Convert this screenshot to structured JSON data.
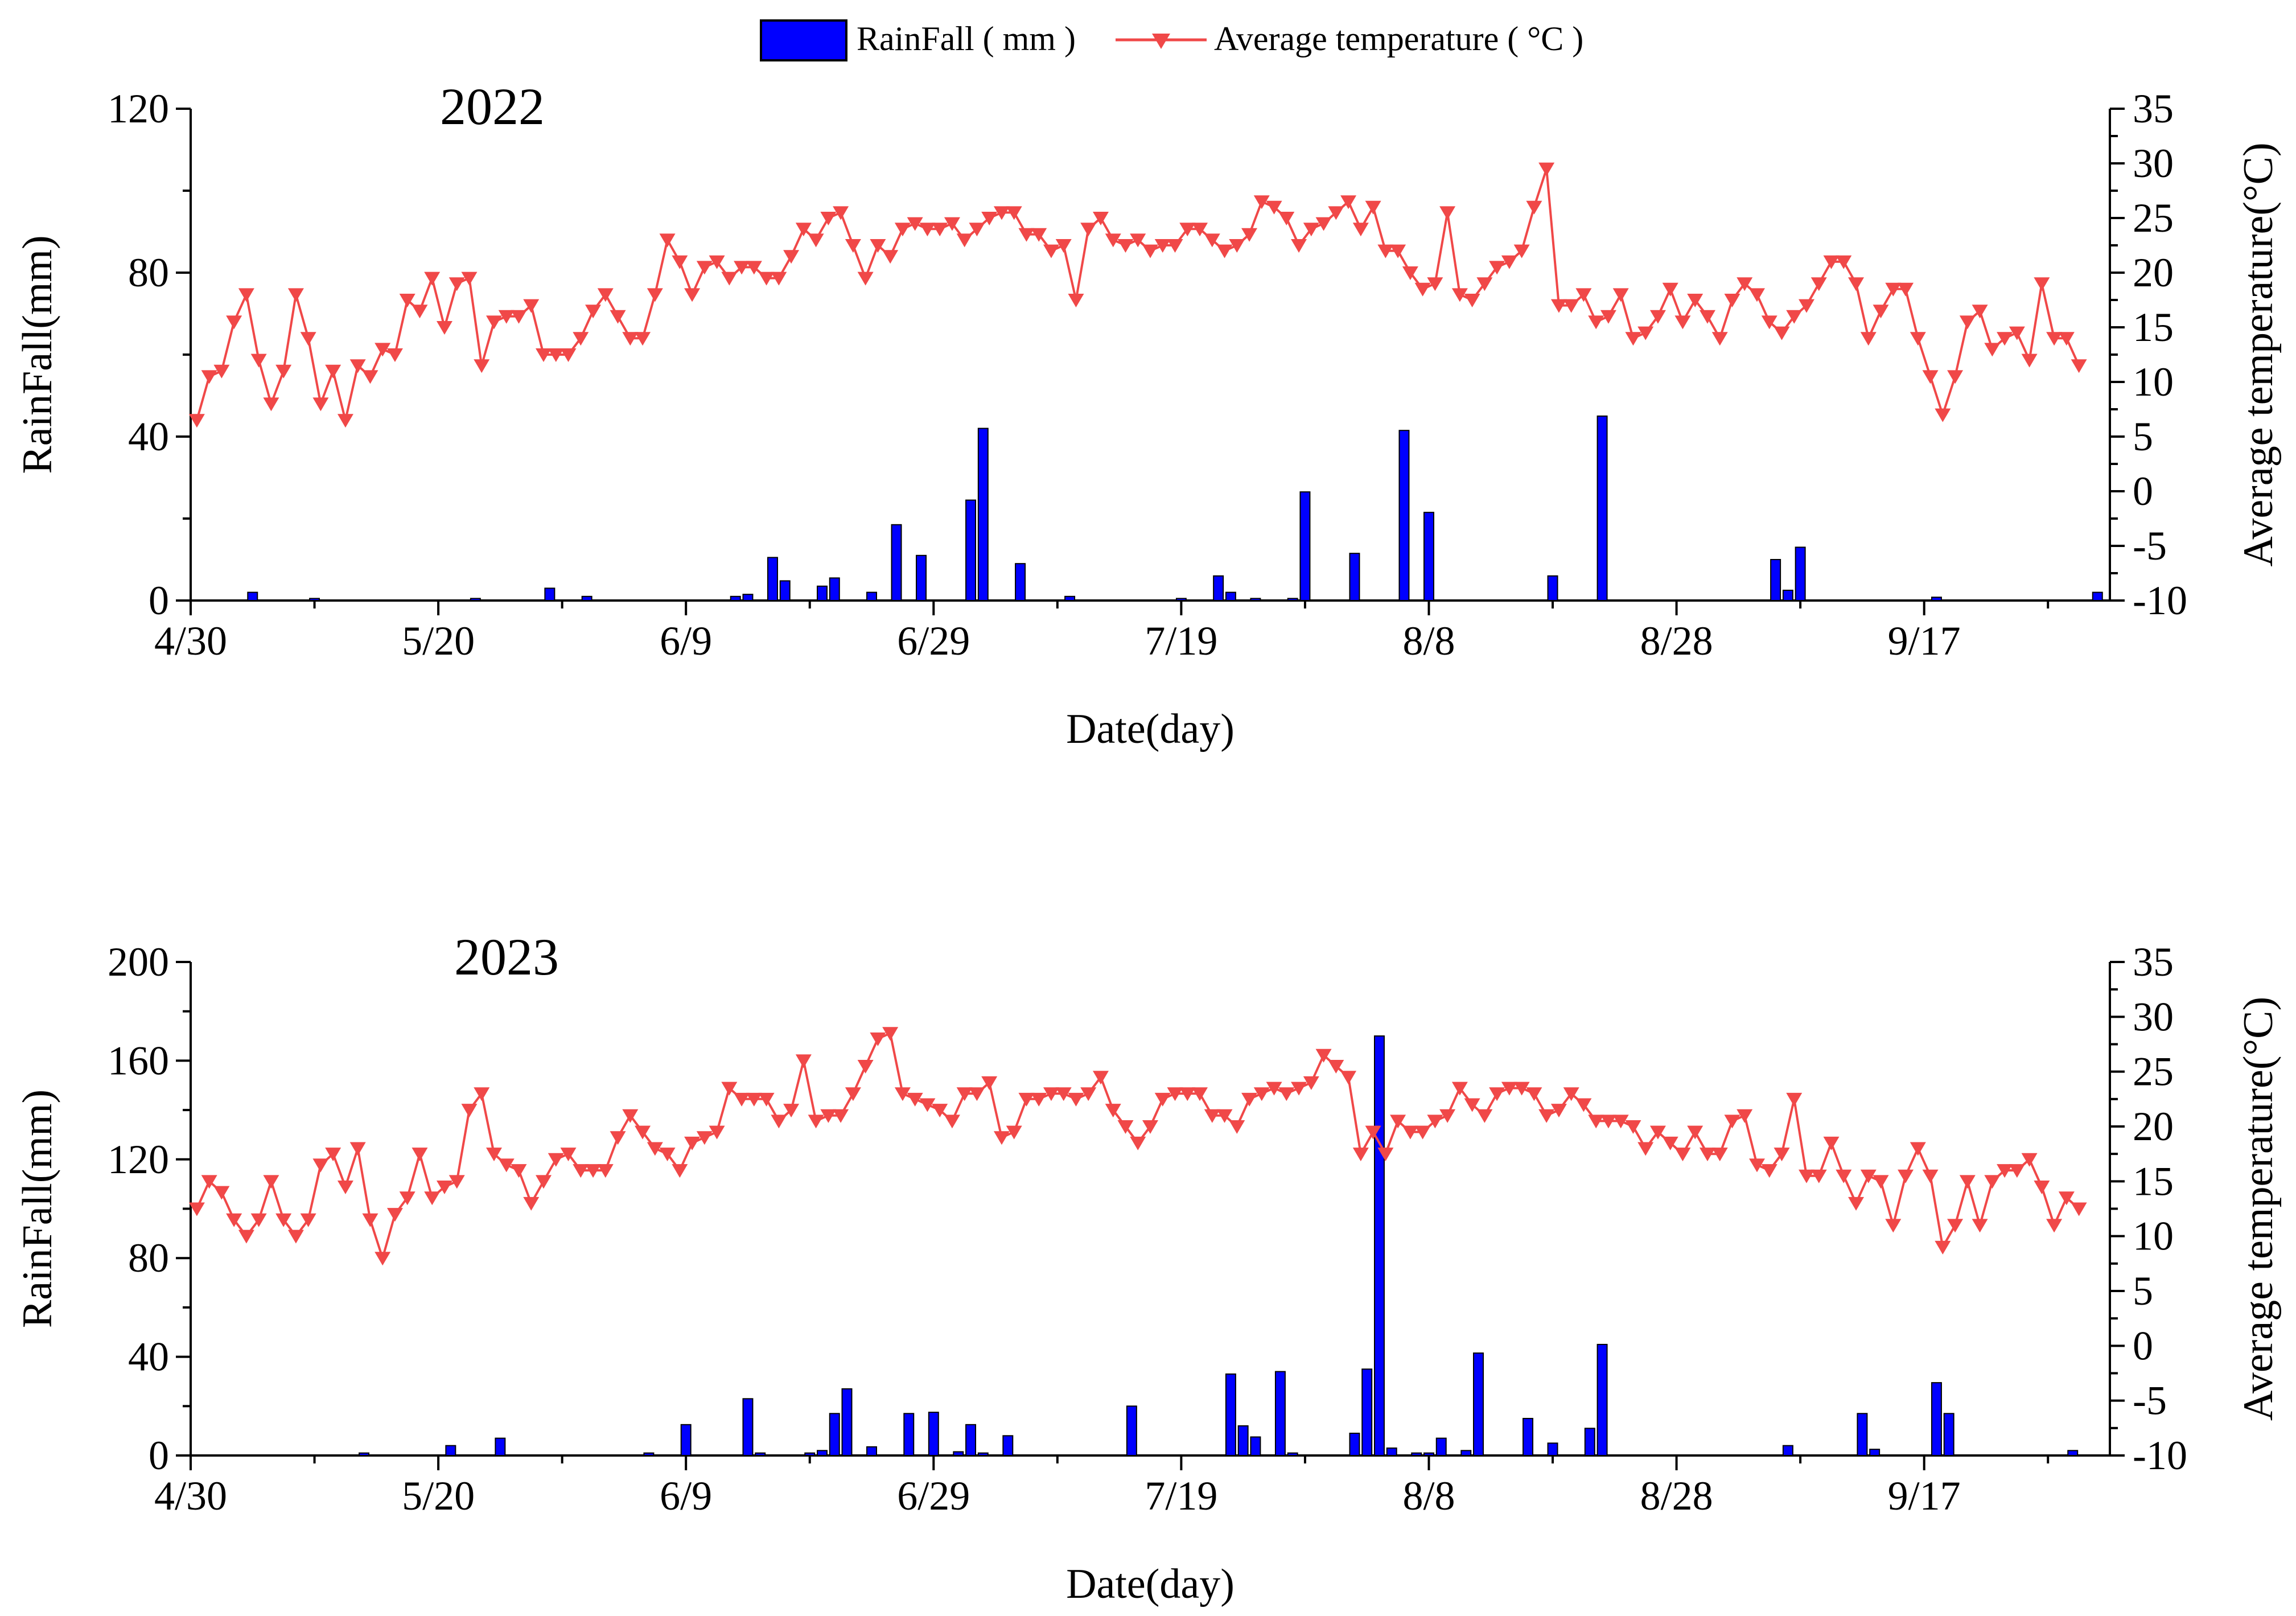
{
  "legend": {
    "rain_label": "RainFall ( mm )",
    "temp_label": "Average temperature ( °C )"
  },
  "colors": {
    "rain_fill": "#0000ff",
    "rain_stroke": "#000000",
    "temp_line": "#f04848",
    "axis": "#000000"
  },
  "chart_data": [
    {
      "type": "bar+line",
      "title": "2022",
      "xlabel": "Date(day)",
      "ylabel_left": "RainFall(mm)",
      "ylabel_right": "Average temperature(°C)",
      "x_tick_labels": [
        "4/30",
        "5/20",
        "6/9",
        "6/29",
        "7/19",
        "8/8",
        "8/28",
        "9/17"
      ],
      "x_tick_days": [
        0,
        20,
        40,
        60,
        80,
        100,
        120,
        140
      ],
      "x_range": [
        0,
        155
      ],
      "ylim_left": [
        0,
        120
      ],
      "yticks_left": [
        0,
        40,
        80,
        120
      ],
      "ylim_right": [
        -10,
        35
      ],
      "yticks_right": [
        -10,
        -5,
        0,
        5,
        10,
        15,
        20,
        25,
        30,
        35
      ],
      "rain": [
        [
          5,
          2
        ],
        [
          10,
          0.5
        ],
        [
          23,
          0.5
        ],
        [
          29,
          3
        ],
        [
          32,
          1
        ],
        [
          44,
          1
        ],
        [
          45,
          1.5
        ],
        [
          47,
          10.5
        ],
        [
          48,
          4.8
        ],
        [
          51,
          3.5
        ],
        [
          52,
          5.5
        ],
        [
          55,
          2
        ],
        [
          57,
          18.5
        ],
        [
          59,
          11
        ],
        [
          63,
          24.5
        ],
        [
          64,
          42
        ],
        [
          67,
          9
        ],
        [
          71,
          1
        ],
        [
          80,
          0.5
        ],
        [
          83,
          6
        ],
        [
          84,
          2
        ],
        [
          86,
          0.5
        ],
        [
          89,
          0.5
        ],
        [
          90,
          26.5
        ],
        [
          94,
          11.5
        ],
        [
          98,
          41.5
        ],
        [
          100,
          21.5
        ],
        [
          110,
          6
        ],
        [
          114,
          45
        ],
        [
          128,
          10
        ],
        [
          129,
          2.5
        ],
        [
          130,
          13
        ],
        [
          141,
          0.8
        ],
        [
          154,
          2
        ]
      ],
      "temperature": [
        6.5,
        10.5,
        11,
        15.5,
        18,
        12,
        8,
        11,
        18,
        14,
        8,
        11,
        6.5,
        11.5,
        10.5,
        13,
        12.5,
        17.5,
        16.5,
        19.5,
        15,
        19,
        19.5,
        11.5,
        15.5,
        16,
        16,
        17,
        12.5,
        12.5,
        12.5,
        14,
        16.5,
        18,
        16,
        14,
        14,
        18,
        23,
        21,
        18,
        20.5,
        21,
        19.5,
        20.5,
        20.5,
        19.5,
        19.5,
        21.5,
        24,
        23,
        25,
        25.5,
        22.5,
        19.5,
        22.5,
        21.5,
        24,
        24.5,
        24,
        24,
        24.5,
        23,
        24,
        25,
        25.5,
        25.5,
        23.5,
        23.5,
        22,
        22.5,
        17.5,
        24,
        25,
        23,
        22.5,
        23,
        22,
        22.5,
        22.5,
        24,
        24,
        23,
        22,
        22.5,
        23.5,
        26.5,
        26,
        25,
        22.5,
        24,
        24.5,
        25.5,
        26.5,
        24,
        26,
        22,
        22,
        20,
        18.5,
        19,
        25.5,
        18,
        17.5,
        19,
        20.5,
        21,
        22,
        26,
        29.5,
        17,
        17,
        18,
        15.5,
        16,
        18,
        14,
        14.5,
        16,
        18.5,
        15.5,
        17.5,
        16,
        14,
        17.5,
        19,
        18,
        15.5,
        14.5,
        16,
        17,
        19,
        21,
        21,
        19,
        14,
        16.5,
        18.5,
        18.5,
        14,
        10.5,
        7,
        10.5,
        15.5,
        16.5,
        13,
        14,
        14.5,
        12,
        19,
        14,
        14,
        11.5
      ]
    },
    {
      "type": "bar+line",
      "title": "2023",
      "xlabel": "Date(day)",
      "ylabel_left": "RainFall(mm)",
      "ylabel_right": "Average temperature(°C)",
      "x_tick_labels": [
        "4/30",
        "5/20",
        "6/9",
        "6/29",
        "7/19",
        "8/8",
        "8/28",
        "9/17"
      ],
      "x_tick_days": [
        0,
        20,
        40,
        60,
        80,
        100,
        120,
        140
      ],
      "x_range": [
        0,
        155
      ],
      "ylim_left": [
        0,
        200
      ],
      "yticks_left": [
        0,
        40,
        80,
        120,
        160,
        200
      ],
      "ylim_right": [
        -10,
        35
      ],
      "yticks_right": [
        -10,
        -5,
        0,
        5,
        10,
        15,
        20,
        25,
        30,
        35
      ],
      "rain": [
        [
          14,
          1
        ],
        [
          21,
          4
        ],
        [
          25,
          7
        ],
        [
          37,
          1
        ],
        [
          40,
          12.5
        ],
        [
          45,
          23
        ],
        [
          46,
          1
        ],
        [
          50,
          1
        ],
        [
          51,
          2
        ],
        [
          52,
          17
        ],
        [
          53,
          27
        ],
        [
          55,
          3.5
        ],
        [
          58,
          17
        ],
        [
          60,
          17.5
        ],
        [
          62,
          1.5
        ],
        [
          63,
          12.5
        ],
        [
          64,
          1
        ],
        [
          66,
          8
        ],
        [
          76,
          20
        ],
        [
          84,
          33
        ],
        [
          85,
          12
        ],
        [
          86,
          7.5
        ],
        [
          88,
          34
        ],
        [
          89,
          1
        ],
        [
          94,
          9
        ],
        [
          95,
          35
        ],
        [
          96,
          170
        ],
        [
          97,
          3
        ],
        [
          99,
          1
        ],
        [
          100,
          1
        ],
        [
          101,
          7
        ],
        [
          103,
          2
        ],
        [
          104,
          41.5
        ],
        [
          108,
          15
        ],
        [
          110,
          5
        ],
        [
          113,
          11
        ],
        [
          114,
          45
        ],
        [
          129,
          4
        ],
        [
          135,
          17
        ],
        [
          136,
          2.5
        ],
        [
          141,
          29.5
        ],
        [
          142,
          17
        ],
        [
          152,
          2
        ]
      ],
      "temperature": [
        12.5,
        15,
        14,
        11.5,
        10,
        11.5,
        15,
        11.5,
        10,
        11.5,
        16.5,
        17.5,
        14.5,
        18,
        11.5,
        8,
        12,
        13.5,
        17.5,
        13.5,
        14.5,
        15,
        21.5,
        23,
        17.5,
        16.5,
        16,
        13,
        15,
        17,
        17.5,
        16,
        16,
        16,
        19,
        21,
        19.5,
        18,
        17.5,
        16,
        18.5,
        19,
        19.5,
        23.5,
        22.5,
        22.5,
        22.5,
        20.5,
        21.5,
        26,
        20.5,
        21,
        21,
        23,
        25.5,
        28,
        28.5,
        23,
        22.5,
        22,
        21.5,
        20.5,
        23,
        23,
        24,
        19,
        19.5,
        22.5,
        22.5,
        23,
        23,
        22.5,
        23,
        24.5,
        21.5,
        20,
        18.5,
        20,
        22.5,
        23,
        23,
        23,
        21,
        21,
        20,
        22.5,
        23,
        23.5,
        23,
        23.5,
        24,
        26.5,
        25.5,
        24.5,
        17.5,
        19.5,
        17.5,
        20.5,
        19.5,
        19.5,
        20.5,
        21,
        23.5,
        22,
        21,
        23,
        23.5,
        23.5,
        23,
        21,
        21.5,
        23,
        22,
        20.5,
        20.5,
        20.5,
        20,
        18,
        19.5,
        18.5,
        17.5,
        19.5,
        17.5,
        17.5,
        20.5,
        21,
        16.5,
        16,
        17.5,
        22.5,
        15.5,
        15.5,
        18.5,
        15.5,
        13,
        15.5,
        15,
        11,
        15.5,
        18,
        15.5,
        9,
        11,
        15,
        11,
        15,
        16,
        16,
        17,
        14.5,
        11,
        13.5,
        12.5
      ]
    }
  ]
}
